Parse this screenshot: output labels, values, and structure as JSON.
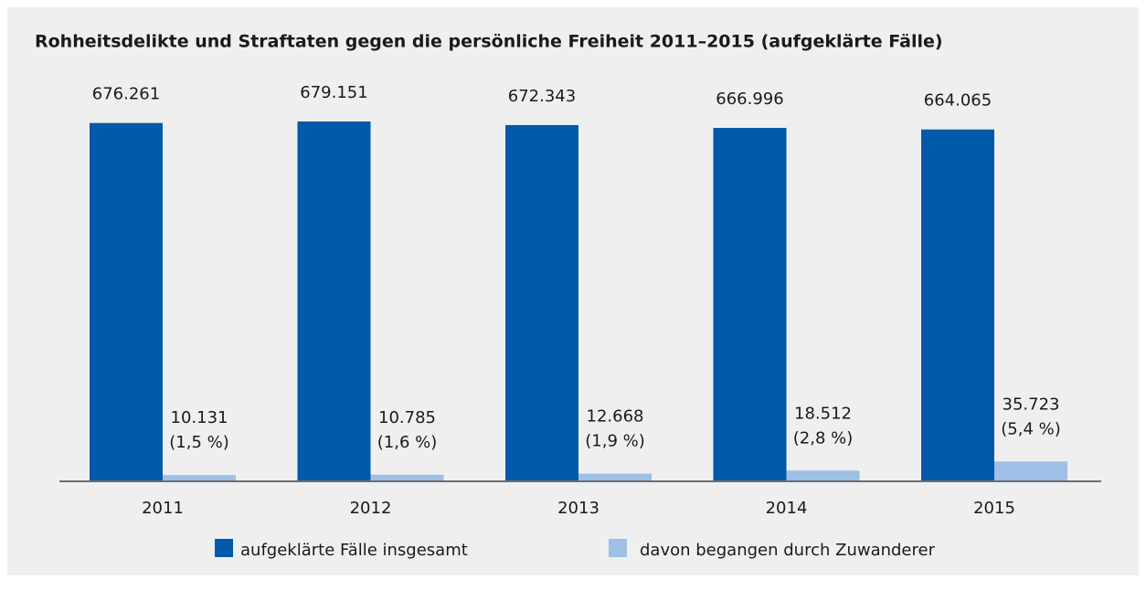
{
  "chart_data": {
    "type": "bar",
    "title": "Rohheitsdelikte und Straftaten gegen die persönliche Freiheit 2011–2015 (aufgeklärte Fälle)",
    "categories": [
      "2011",
      "2012",
      "2013",
      "2014",
      "2015"
    ],
    "series": [
      {
        "name": "aufgeklärte Fälle insgesamt",
        "color": "#0059a9",
        "values": [
          676261,
          679151,
          672343,
          666996,
          664065
        ],
        "value_labels": [
          "676.261",
          "679.151",
          "672.343",
          "666.996",
          "664.065"
        ]
      },
      {
        "name": "davon begangen durch Zuwanderer",
        "color": "#9ebfe6",
        "values": [
          10131,
          10785,
          12668,
          18512,
          35723
        ],
        "value_labels": [
          "10.131",
          "10.785",
          "12.668",
          "18.512",
          "35.723"
        ],
        "share_labels": [
          "(1,5 %)",
          "(1,6 %)",
          "(1,9 %)",
          "(2,8 %)",
          "(5,4 %)"
        ]
      }
    ]
  }
}
